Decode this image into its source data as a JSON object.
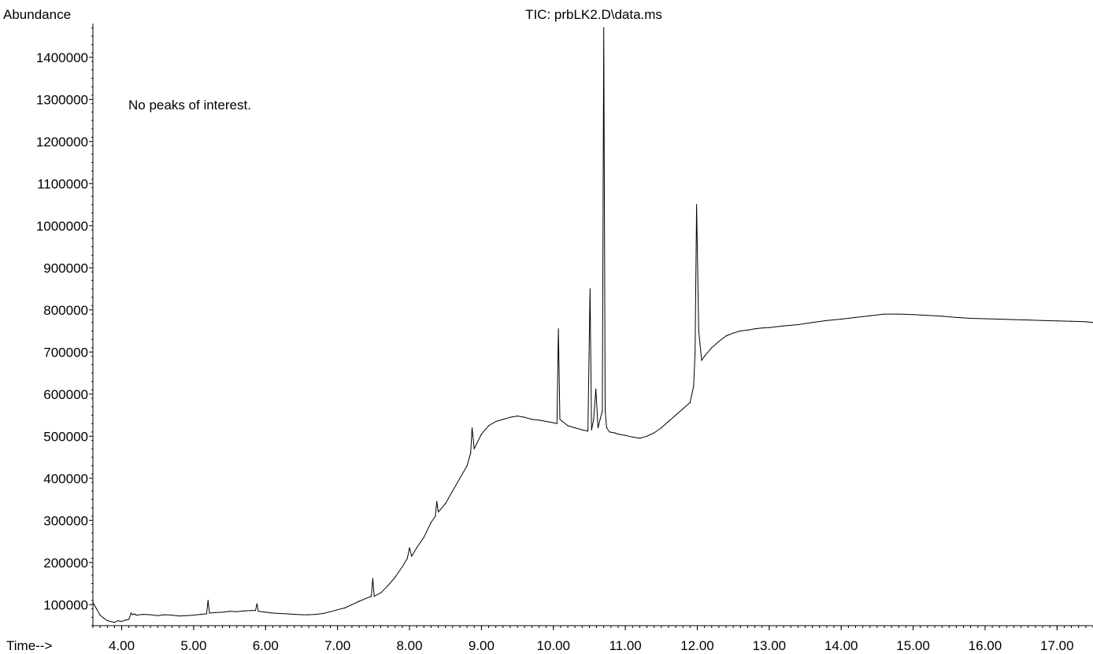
{
  "chart_data": {
    "type": "line",
    "title": "TIC: prbLK2.D\\data.ms",
    "ylabel": "Abundance",
    "xlabel": "Time-->",
    "annotation": "No peaks of interest.",
    "xlim": [
      3.6,
      17.5
    ],
    "ylim": [
      50000,
      1480000
    ],
    "x_ticks": [
      4.0,
      5.0,
      6.0,
      7.0,
      8.0,
      9.0,
      10.0,
      11.0,
      12.0,
      13.0,
      14.0,
      15.0,
      16.0,
      17.0
    ],
    "x_tick_labels": [
      "4.00",
      "5.00",
      "6.00",
      "7.00",
      "8.00",
      "9.00",
      "10.00",
      "11.00",
      "12.00",
      "13.00",
      "14.00",
      "15.00",
      "16.00",
      "17.00"
    ],
    "y_ticks": [
      100000,
      200000,
      300000,
      400000,
      500000,
      600000,
      700000,
      800000,
      900000,
      1000000,
      1100000,
      1200000,
      1300000,
      1400000
    ],
    "y_tick_labels": [
      "100000",
      "200000",
      "300000",
      "400000",
      "500000",
      "600000",
      "700000",
      "800000",
      "900000",
      "1000000",
      "1100000",
      "1200000",
      "1300000",
      "1400000"
    ],
    "grid": false,
    "legend": "none",
    "series": [
      {
        "x": [
          3.6,
          3.65,
          3.7,
          3.75,
          3.8,
          3.85,
          3.9,
          3.95,
          4.0,
          4.05,
          4.1,
          4.13,
          4.15,
          4.18,
          4.2,
          4.3,
          4.4,
          4.5,
          4.6,
          4.7,
          4.8,
          4.9,
          5.0,
          5.1,
          5.18,
          5.2,
          5.22,
          5.3,
          5.4,
          5.5,
          5.6,
          5.7,
          5.8,
          5.86,
          5.88,
          5.9,
          6.0,
          6.1,
          6.2,
          6.3,
          6.4,
          6.5,
          6.6,
          6.7,
          6.8,
          6.9,
          7.0,
          7.1,
          7.2,
          7.3,
          7.4,
          7.47,
          7.49,
          7.51,
          7.6,
          7.7,
          7.8,
          7.9,
          7.97,
          8.0,
          8.03,
          8.1,
          8.2,
          8.3,
          8.36,
          8.38,
          8.4,
          8.5,
          8.6,
          8.7,
          8.8,
          8.85,
          8.87,
          8.9,
          9.0,
          9.1,
          9.2,
          9.3,
          9.4,
          9.5,
          9.6,
          9.7,
          9.8,
          9.9,
          10.0,
          10.05,
          10.07,
          10.09,
          10.2,
          10.3,
          10.4,
          10.48,
          10.51,
          10.53,
          10.56,
          10.59,
          10.62,
          10.65,
          10.68,
          10.7,
          10.72,
          10.74,
          10.78,
          10.85,
          10.9,
          11.0,
          11.1,
          11.2,
          11.3,
          11.4,
          11.5,
          11.6,
          11.7,
          11.8,
          11.9,
          11.95,
          11.97,
          11.99,
          12.02,
          12.06,
          12.1,
          12.2,
          12.3,
          12.4,
          12.5,
          12.6,
          12.7,
          12.8,
          12.9,
          13.0,
          13.2,
          13.4,
          13.6,
          13.8,
          14.0,
          14.2,
          14.4,
          14.6,
          14.8,
          15.0,
          15.2,
          15.4,
          15.6,
          15.8,
          16.0,
          16.2,
          16.4,
          16.6,
          16.8,
          17.0,
          17.2,
          17.4,
          17.5
        ],
        "y": [
          105000,
          90000,
          75000,
          68000,
          62000,
          60000,
          58000,
          62000,
          60000,
          63000,
          65000,
          80000,
          76000,
          78000,
          75000,
          77000,
          76000,
          74000,
          76000,
          75000,
          73000,
          74000,
          75000,
          77000,
          78000,
          110000,
          80000,
          81000,
          82000,
          84000,
          83000,
          85000,
          86000,
          86000,
          102000,
          84000,
          82000,
          80000,
          79000,
          78000,
          77000,
          76000,
          76000,
          77000,
          79000,
          83000,
          88000,
          92000,
          100000,
          108000,
          115000,
          120000,
          162000,
          120000,
          128000,
          145000,
          165000,
          190000,
          210000,
          235000,
          215000,
          235000,
          260000,
          295000,
          310000,
          345000,
          320000,
          340000,
          370000,
          400000,
          430000,
          460000,
          520000,
          470000,
          505000,
          525000,
          535000,
          540000,
          545000,
          548000,
          545000,
          540000,
          538000,
          535000,
          532000,
          530000,
          755000,
          540000,
          525000,
          520000,
          515000,
          512000,
          850000,
          515000,
          540000,
          612000,
          520000,
          540000,
          560000,
          1470000,
          560000,
          520000,
          510000,
          508000,
          505000,
          502000,
          498000,
          495000,
          500000,
          508000,
          520000,
          535000,
          550000,
          565000,
          580000,
          620000,
          700000,
          1050000,
          750000,
          680000,
          690000,
          710000,
          725000,
          738000,
          745000,
          750000,
          752000,
          755000,
          757000,
          758000,
          762000,
          765000,
          770000,
          775000,
          778000,
          782000,
          786000,
          790000,
          790000,
          789000,
          787000,
          785000,
          782000,
          780000,
          779000,
          778000,
          777000,
          776000,
          775000,
          774000,
          773000,
          772000,
          770000
        ]
      }
    ]
  }
}
